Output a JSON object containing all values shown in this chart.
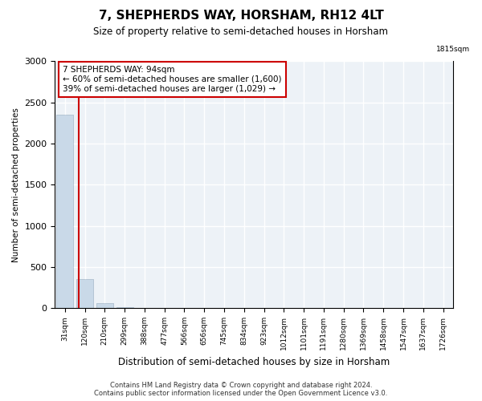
{
  "title": "7, SHEPHERDS WAY, HORSHAM, RH12 4LT",
  "subtitle": "Size of property relative to semi-detached houses in Horsham",
  "xlabel": "Distribution of semi-detached houses by size in Horsham",
  "ylabel": "Number of semi-detached properties",
  "annotation_line1": "7 SHEPHERDS WAY: 94sqm",
  "annotation_line2": "← 60% of semi-detached houses are smaller (1,600)",
  "annotation_line3": "39% of semi-detached houses are larger (1,029) →",
  "bar_color": "#c9d9e8",
  "bar_edgecolor": "#b0c0d0",
  "redline_color": "#cc0000",
  "annotation_box_edgecolor": "#cc0000",
  "background_color": "#edf2f7",
  "grid_color": "#ffffff",
  "footer_line1": "Contains HM Land Registry data © Crown copyright and database right 2024.",
  "footer_line2": "Contains public sector information licensed under the Open Government Licence v3.0.",
  "bin_labels": [
    "31sqm",
    "120sqm",
    "210sqm",
    "299sqm",
    "388sqm",
    "477sqm",
    "566sqm",
    "656sqm",
    "745sqm",
    "834sqm",
    "923sqm",
    "1012sqm",
    "1101sqm",
    "1191sqm",
    "1280sqm",
    "1369sqm",
    "1458sqm",
    "1547sqm",
    "1637sqm",
    "1726sqm"
  ],
  "bar_heights": [
    2350,
    355,
    62,
    12,
    5,
    2,
    1,
    1,
    0,
    0,
    0,
    0,
    0,
    0,
    0,
    0,
    0,
    0,
    0,
    0
  ],
  "ylim": [
    0,
    3000
  ],
  "yticks": [
    0,
    500,
    1000,
    1500,
    2000,
    2500,
    3000
  ],
  "redline_x": 0.68
}
